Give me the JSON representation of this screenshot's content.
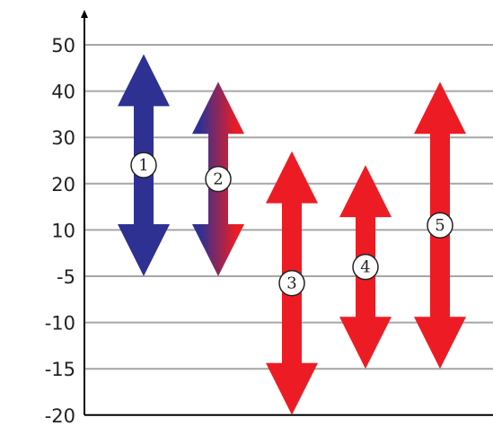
{
  "chart_data": {
    "type": "range-arrows",
    "title": "",
    "xlabel": "",
    "ylabel": "",
    "y_tick_labels": [
      "50",
      "40",
      "30",
      "20",
      "10",
      "-5",
      "-10",
      "-15",
      "-20"
    ],
    "grid": true,
    "series": [
      {
        "label": "1",
        "high": 48,
        "low": -5,
        "fill": "blue"
      },
      {
        "label": "2",
        "high": 42,
        "low": -5,
        "fill": "blue-to-red"
      },
      {
        "label": "3",
        "high": 27,
        "low": -20,
        "fill": "red"
      },
      {
        "label": "4",
        "high": 24,
        "low": -15,
        "fill": "red"
      },
      {
        "label": "5",
        "high": 42,
        "low": -15,
        "fill": "red"
      }
    ],
    "colors": {
      "blue": "#2e3192",
      "red": "#ed1c24",
      "grid": "#a6a6a6",
      "axis": "#000000"
    }
  }
}
